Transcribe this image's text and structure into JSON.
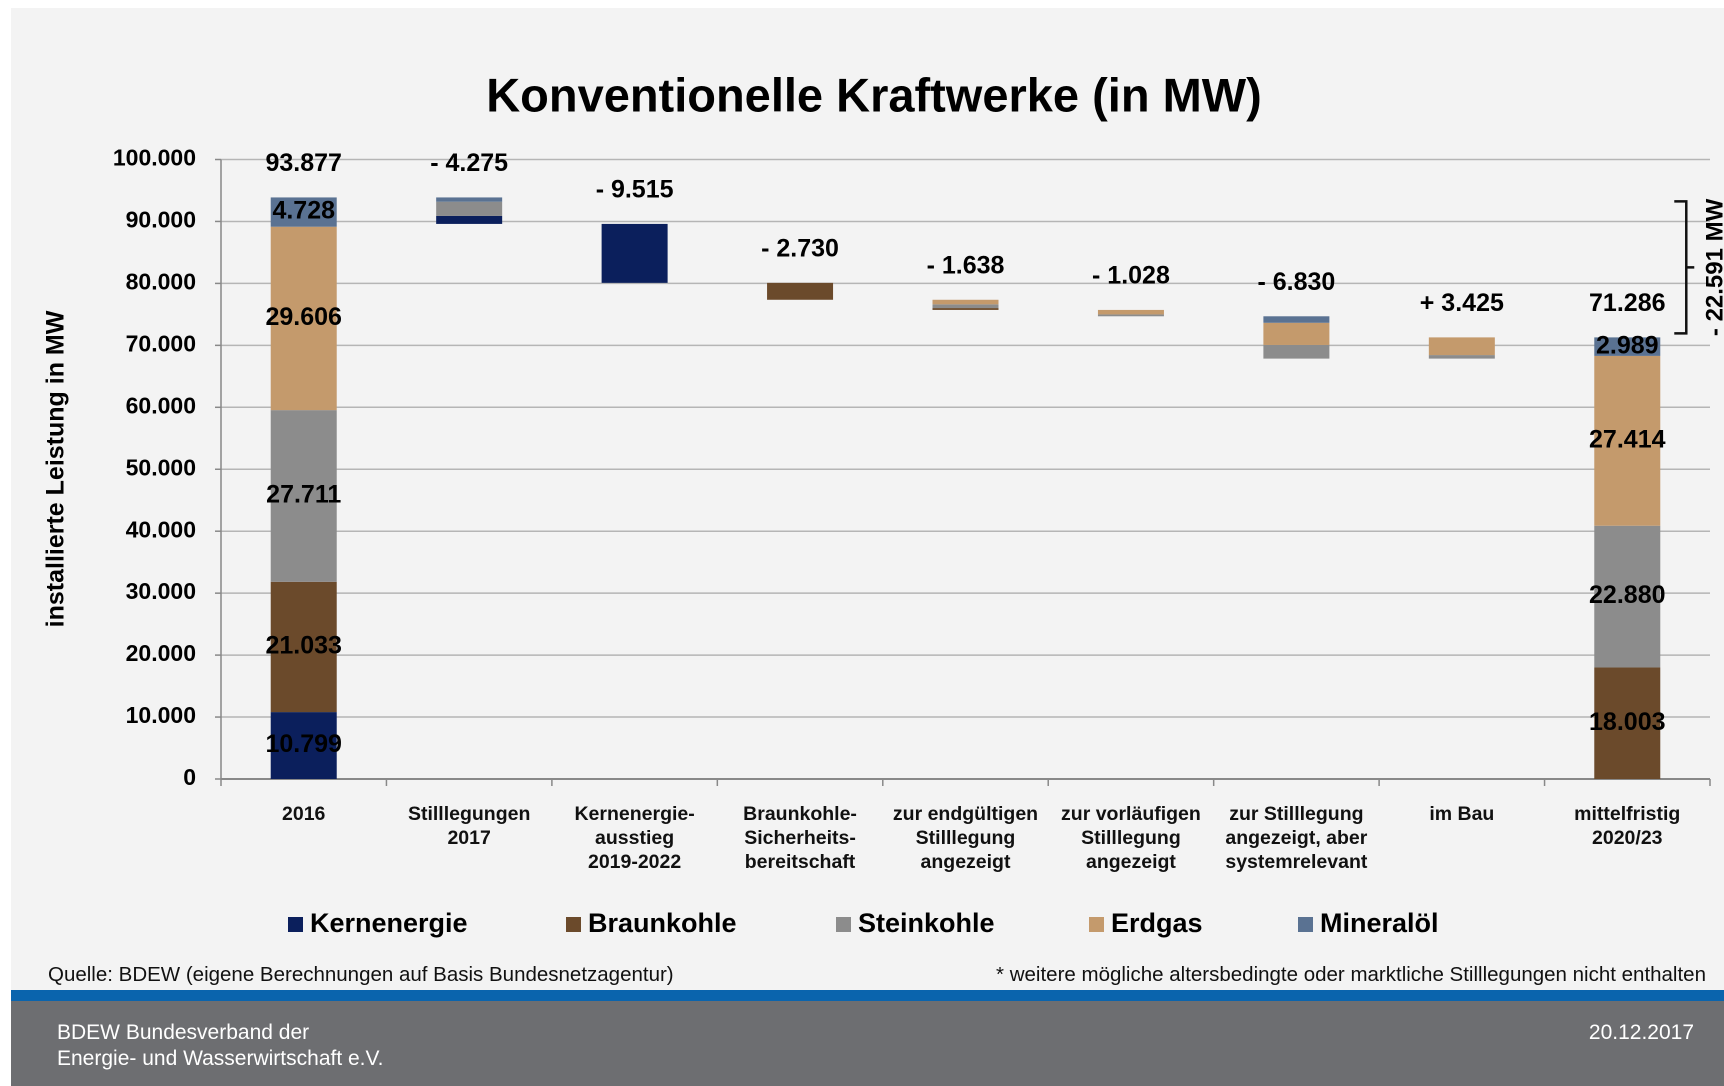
{
  "chart_data": {
    "type": "waterfall",
    "title": "Konventionelle Kraftwerke (in MW)",
    "y_label": "installierte Leistung in MW",
    "categories": [
      "2016",
      "Stilllegungen\n2017",
      "Kernenergie-\nausstieg\n2019-2022",
      "Braunkohle-\nSicherheits-\nbereitschaft",
      "zur endgültigen\nStilllegung\nangezeigt",
      "zur vorläufigen\nStilllegung\nangezeigt",
      "zur Stilllegung\nangezeigt, aber\nsystemrelevant",
      "im Bau",
      "mittelfristig\n2020/23"
    ],
    "measure": [
      "absolute",
      "relative",
      "relative",
      "relative",
      "relative",
      "relative",
      "relative",
      "relative",
      "absolute"
    ],
    "totals": [
      93877,
      -4275,
      -9515,
      -2730,
      -1638,
      -1028,
      -6830,
      3425,
      71286
    ],
    "value_labels": [
      "93.877",
      "- 4.275",
      "- 9.515",
      "- 2.730",
      "- 1.638",
      "- 1.028",
      "- 6.830",
      "+ 3.425",
      "71.286"
    ],
    "series": [
      {
        "name": "Kernenergie",
        "color": "#0b1f5c",
        "values": [
          10799,
          -1284,
          -9515,
          0,
          0,
          0,
          0,
          0,
          0
        ],
        "value_labels": [
          "10.799",
          null,
          null,
          null,
          null,
          null,
          null,
          null,
          null
        ]
      },
      {
        "name": "Braunkohle",
        "color": "#6b4a2b",
        "values": [
          21033,
          0,
          0,
          -2730,
          -300,
          0,
          0,
          0,
          18003
        ],
        "value_labels": [
          "21.033",
          null,
          null,
          null,
          null,
          null,
          null,
          null,
          "18.003"
        ]
      },
      {
        "name": "Steinkohle",
        "color": "#8c8c8c",
        "values": [
          27711,
          -2300,
          0,
          0,
          -600,
          -300,
          -2200,
          569,
          22880
        ],
        "value_labels": [
          "27.711",
          null,
          null,
          null,
          null,
          null,
          null,
          null,
          "22.880"
        ]
      },
      {
        "name": "Erdgas",
        "color": "#c49a6c",
        "values": [
          29606,
          0,
          0,
          0,
          -738,
          -728,
          -3582,
          2856,
          27414
        ],
        "value_labels": [
          "29.606",
          null,
          null,
          null,
          null,
          null,
          null,
          null,
          "27.414"
        ]
      },
      {
        "name": "Mineralöl",
        "color": "#5a7292",
        "values": [
          4728,
          -691,
          0,
          0,
          0,
          0,
          -1048,
          0,
          2989
        ],
        "value_labels": [
          "4.728",
          null,
          null,
          null,
          null,
          null,
          null,
          null,
          "2.989"
        ]
      }
    ],
    "ylim": [
      0,
      100000
    ],
    "yticks": [
      0,
      {
        "value": 10000,
        "label": "10.000"
      },
      {
        "value": 20000,
        "label": "20.000"
      },
      {
        "value": 30000,
        "label": "30.000"
      },
      {
        "value": 40000,
        "label": "40.000"
      },
      {
        "value": 50000,
        "label": "50.000"
      },
      {
        "value": 60000,
        "label": "60.000"
      },
      {
        "value": 70000,
        "label": "70.000"
      },
      {
        "value": 80000,
        "label": "80.000"
      },
      {
        "value": 90000,
        "label": "90.000"
      },
      {
        "value": 100000,
        "label": "100.000"
      }
    ],
    "grid": true,
    "legend": "bottom",
    "annotation": "- 22.591 MW"
  },
  "source": "Quelle: BDEW (eigene Berechnungen auf Basis Bundesnetzagentur)",
  "footnote": "* weitere mögliche altersbedingte oder marktliche Stilllegungen nicht enthalten",
  "footer": {
    "org_line1": "BDEW Bundesverband der",
    "org_line2": "Energie- und Wasserwirtschaft e.V.",
    "date": "20.12.2017"
  }
}
